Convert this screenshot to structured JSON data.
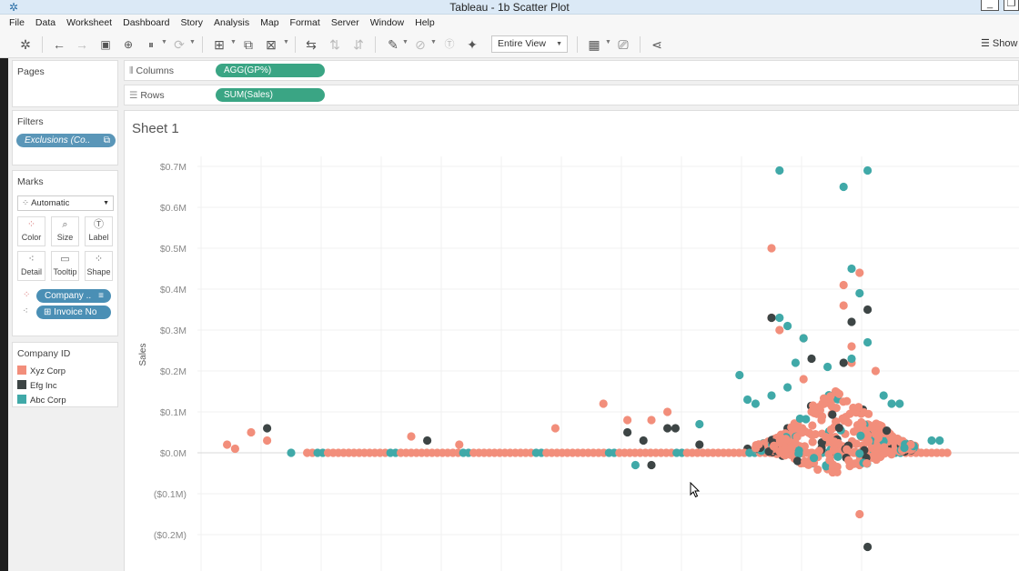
{
  "window": {
    "title": "Tableau - 1b Scatter Plot"
  },
  "menu": [
    "File",
    "Data",
    "Worksheet",
    "Dashboard",
    "Story",
    "Analysis",
    "Map",
    "Format",
    "Server",
    "Window",
    "Help"
  ],
  "toolbar": {
    "fit": "Entire View",
    "show_me": "Show"
  },
  "pages_panel": {
    "title": "Pages"
  },
  "filters_panel": {
    "title": "Filters",
    "filter_pill": "Exclusions (Co.."
  },
  "marks_panel": {
    "title": "Marks",
    "mark_type": "Automatic",
    "buttons": [
      {
        "label": "Color",
        "icon": "color-dots-icon"
      },
      {
        "label": "Size",
        "icon": "size-icon"
      },
      {
        "label": "Label",
        "icon": "label-icon"
      },
      {
        "label": "Detail",
        "icon": "detail-icon"
      },
      {
        "label": "Tooltip",
        "icon": "tooltip-icon"
      },
      {
        "label": "Shape",
        "icon": "shape-icon"
      }
    ],
    "color_pill": "Company ..",
    "detail_pill": "Invoice No"
  },
  "legend": {
    "title": "Company ID",
    "items": [
      {
        "label": "Xyz Corp",
        "color": "#f28e7b"
      },
      {
        "label": "Efg Inc",
        "color": "#3d4545"
      },
      {
        "label": "Abc Corp",
        "color": "#40a9a8"
      }
    ]
  },
  "shelves": {
    "columns_label": "Columns",
    "columns_pill": "AGG(GP%)",
    "rows_label": "Rows",
    "rows_pill": "SUM(Sales)"
  },
  "sheet": {
    "title": "Sheet 1"
  },
  "chart_data": {
    "type": "scatter",
    "ylabel": "Sales",
    "xlabel": "",
    "ylim": [
      -0.22,
      0.72
    ],
    "y_unit": "$M",
    "yticks": [
      "$0.7M",
      "$0.6M",
      "$0.5M",
      "$0.4M",
      "$0.3M",
      "$0.2M",
      "$0.1M",
      "$0.0M",
      "($0.1M)",
      "($0.2M)"
    ],
    "ytick_values": [
      0.7,
      0.6,
      0.5,
      0.4,
      0.3,
      0.2,
      0.1,
      0.0,
      -0.1,
      -0.2
    ],
    "x_axis_shown": false,
    "grid": true,
    "series": [
      {
        "name": "Xyz Corp",
        "color": "#f28e7b",
        "points": [
          [
            0.02,
            0.02
          ],
          [
            0.03,
            0.01
          ],
          [
            0.05,
            0.05
          ],
          [
            0.07,
            0.03
          ],
          [
            0.25,
            0.04
          ],
          [
            0.31,
            0.02
          ],
          [
            0.43,
            0.06
          ],
          [
            0.49,
            0.12
          ],
          [
            0.52,
            0.08
          ],
          [
            0.55,
            0.08
          ],
          [
            0.57,
            0.1
          ],
          [
            0.7,
            0.5
          ],
          [
            0.7,
            0.33
          ],
          [
            0.71,
            0.3
          ],
          [
            0.74,
            0.28
          ],
          [
            0.79,
            0.36
          ],
          [
            0.79,
            0.41
          ],
          [
            0.8,
            0.26
          ],
          [
            0.81,
            0.44
          ],
          [
            0.8,
            0.22
          ],
          [
            0.78,
            0.15
          ],
          [
            0.83,
            0.2
          ],
          [
            0.74,
            0.18
          ],
          [
            0.77,
            -0.04
          ],
          [
            0.81,
            -0.03
          ],
          [
            0.81,
            -0.15
          ]
        ]
      },
      {
        "name": "Efg Inc",
        "color": "#3d4545",
        "points": [
          [
            0.07,
            0.06
          ],
          [
            0.27,
            0.03
          ],
          [
            0.52,
            0.05
          ],
          [
            0.54,
            0.03
          ],
          [
            0.57,
            0.06
          ],
          [
            0.58,
            0.06
          ],
          [
            0.61,
            0.02
          ],
          [
            0.55,
            -0.03
          ],
          [
            0.7,
            0.33
          ],
          [
            0.8,
            0.32
          ],
          [
            0.82,
            0.35
          ],
          [
            0.75,
            0.23
          ],
          [
            0.79,
            0.22
          ],
          [
            0.72,
            0.06
          ],
          [
            0.82,
            -0.23
          ],
          [
            0.67,
            0.01
          ]
        ]
      },
      {
        "name": "Abc Corp",
        "color": "#40a9a8",
        "points": [
          [
            0.1,
            0.0
          ],
          [
            0.53,
            -0.03
          ],
          [
            0.61,
            0.07
          ],
          [
            0.66,
            0.19
          ],
          [
            0.67,
            0.13
          ],
          [
            0.71,
            0.69
          ],
          [
            0.79,
            0.65
          ],
          [
            0.82,
            0.69
          ],
          [
            0.8,
            0.45
          ],
          [
            0.81,
            0.39
          ],
          [
            0.82,
            0.27
          ],
          [
            0.71,
            0.33
          ],
          [
            0.72,
            0.31
          ],
          [
            0.74,
            0.28
          ],
          [
            0.73,
            0.22
          ],
          [
            0.77,
            0.21
          ],
          [
            0.8,
            0.23
          ],
          [
            0.84,
            0.14
          ],
          [
            0.85,
            0.12
          ],
          [
            0.86,
            0.12
          ],
          [
            0.72,
            0.16
          ],
          [
            0.7,
            0.14
          ],
          [
            0.68,
            0.12
          ],
          [
            0.9,
            0.03
          ],
          [
            0.91,
            0.03
          ],
          [
            0.86,
            0.03
          ]
        ]
      }
    ]
  }
}
